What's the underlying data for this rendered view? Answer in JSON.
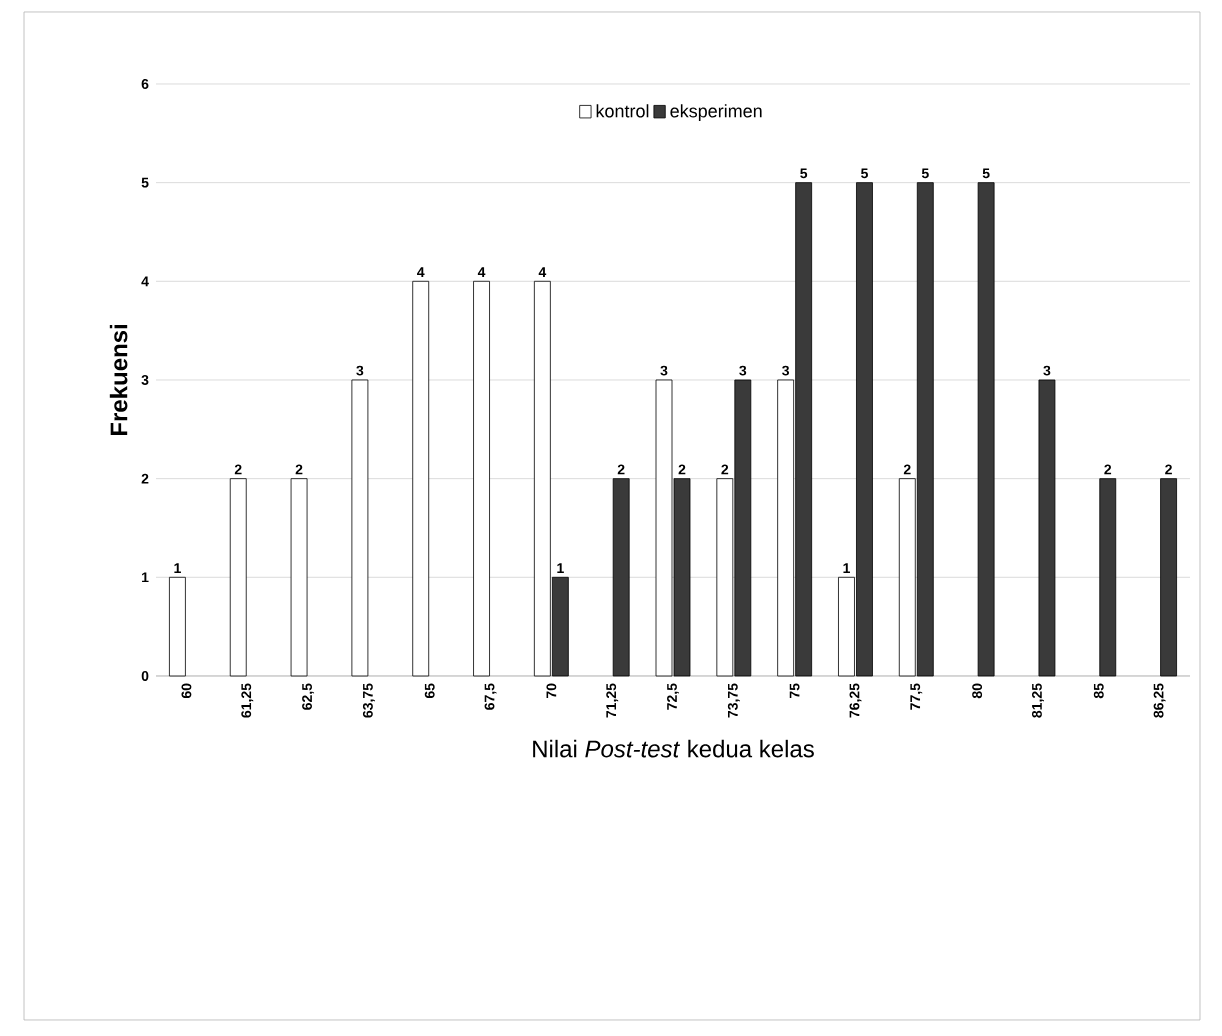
{
  "chart_data": {
    "type": "bar",
    "xlabel": "Nilai *Post-test* kedua kelas",
    "ylabel": "Frekuensi",
    "categories": [
      "60",
      "61,25",
      "62,5",
      "63,75",
      "65",
      "67,5",
      "70",
      "71,25",
      "72,5",
      "73,75",
      "75",
      "76,25",
      "77,5",
      "80",
      "81,25",
      "85",
      "86,25"
    ],
    "series": [
      {
        "name": "kontrol",
        "color": "#ffffff",
        "values": [
          1,
          2,
          2,
          3,
          4,
          4,
          4,
          0,
          3,
          2,
          3,
          1,
          2,
          0,
          0,
          0,
          0
        ],
        "value_labels": [
          "1",
          "2",
          "2",
          "3",
          "4",
          "4",
          "4",
          null,
          "3",
          "2",
          "3",
          "1",
          "2",
          null,
          null,
          null,
          null
        ]
      },
      {
        "name": "eksperimen",
        "color": "#3a3a3a",
        "values": [
          0,
          0,
          0,
          0,
          0,
          0,
          1,
          2,
          2,
          3,
          5,
          5,
          5,
          5,
          3,
          2,
          2
        ],
        "value_labels": [
          null,
          null,
          null,
          null,
          null,
          null,
          "1",
          "2",
          "2",
          "3",
          "5",
          "5",
          "5",
          "5",
          "3",
          "2",
          "2"
        ]
      }
    ],
    "ylim": [
      0,
      6
    ],
    "yticks": [
      0,
      1,
      2,
      3,
      4,
      5,
      6
    ],
    "grid": "y",
    "legend": "top"
  }
}
